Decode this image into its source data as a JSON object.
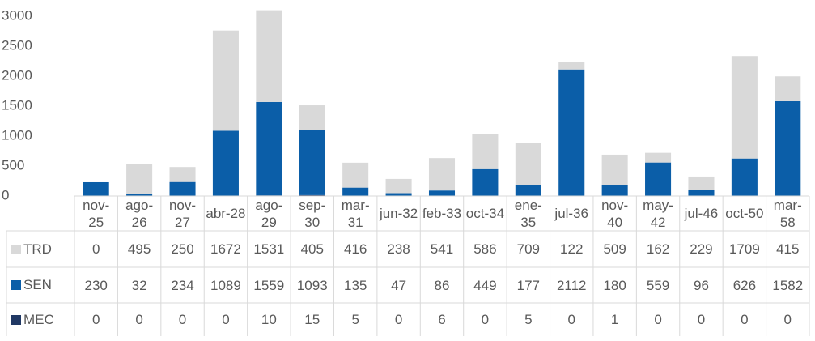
{
  "chart_data": {
    "type": "bar",
    "stacked": true,
    "categories": [
      "nov-25",
      "ago-26",
      "nov-27",
      "abr-28",
      "ago-29",
      "sep-30",
      "mar-31",
      "jun-32",
      "feb-33",
      "oct-34",
      "ene-35",
      "jul-36",
      "nov-40",
      "may-42",
      "jul-46",
      "oct-50",
      "mar-58"
    ],
    "series": [
      {
        "name": "TRD",
        "color": "#d9d9d9",
        "values": [
          0,
          495,
          250,
          1672,
          1531,
          405,
          416,
          238,
          541,
          586,
          709,
          122,
          509,
          162,
          229,
          1709,
          415
        ]
      },
      {
        "name": "SEN",
        "color": "#0b5ea8",
        "values": [
          230,
          32,
          234,
          1089,
          1559,
          1093,
          135,
          47,
          86,
          449,
          177,
          2112,
          180,
          559,
          96,
          626,
          1582
        ]
      },
      {
        "name": "MEC",
        "color": "#203864",
        "values": [
          0,
          0,
          0,
          0,
          10,
          15,
          5,
          0,
          6,
          0,
          5,
          0,
          1,
          0,
          0,
          0,
          0
        ]
      }
    ],
    "ylim": [
      0,
      3000
    ],
    "yticks": [
      0,
      500,
      1000,
      1500,
      2000,
      2500,
      3000
    ],
    "grid": false,
    "data_table": true
  }
}
